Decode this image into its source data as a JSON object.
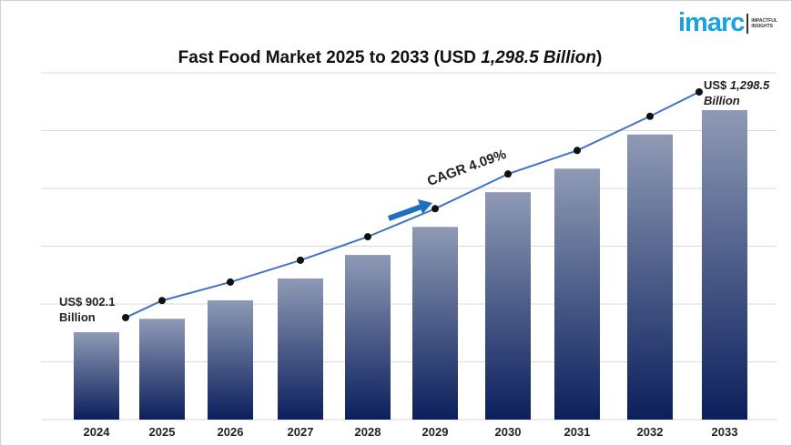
{
  "logo": {
    "text": "imarc",
    "tagline_1": "IMPACTFUL",
    "tagline_2": "INSIGHTS"
  },
  "chart_data": {
    "type": "bar",
    "title_prefix": "Fast Food Market 2025 to 2033 (USD ",
    "title_value": "1,298.5 Billion",
    "title_suffix": ")",
    "categories": [
      "2024",
      "2025",
      "2026",
      "2027",
      "2028",
      "2029",
      "2030",
      "2031",
      "2032",
      "2033"
    ],
    "values": [
      902.1,
      926,
      959,
      998,
      1040,
      1090,
      1152,
      1194,
      1255,
      1298.5
    ],
    "trend_line": true,
    "grid": true,
    "start_label_1": "US$ 902.1",
    "start_label_2": "Billion",
    "end_label_1": "US$ ",
    "end_label_1_value": "1,298.5",
    "end_label_2": "Billion",
    "cagr_label": "CAGR 4.09%",
    "colors": {
      "bar_top": "#8e9ab5",
      "bar_bottom": "#0b1f5c",
      "line": "#4472c4",
      "marker": "#111111",
      "arrow": "#1f6fc0"
    }
  }
}
